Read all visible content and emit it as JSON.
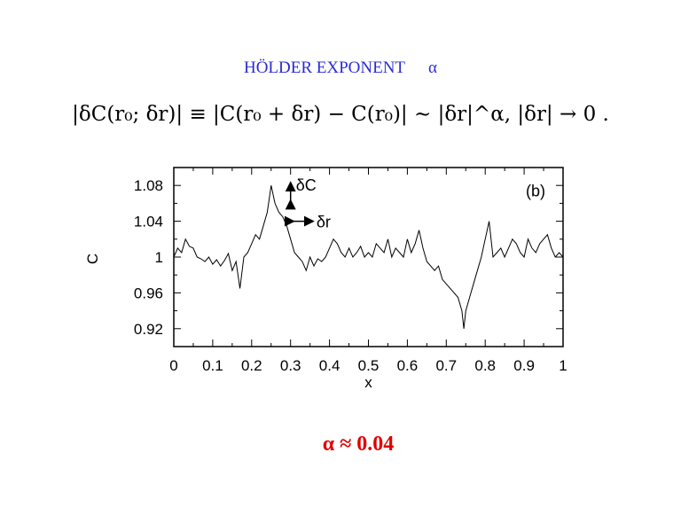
{
  "slide": {
    "title": "HÖLDER EXPONENT",
    "title_symbol": "α",
    "formula": "|δC(r₀; δr)| ≡ |C(r₀ + δr) − C(r₀)| ∼ |δr|^α,   |δr| → 0 .",
    "result": "α ≈ 0.04"
  },
  "colors": {
    "title": "#2b2bd6",
    "result": "#e00000",
    "plot_line": "#000000"
  },
  "chart_data": {
    "type": "line",
    "xlabel": "x",
    "ylabel": "C",
    "panel_label": "(b)",
    "xlim": [
      0,
      1
    ],
    "ylim": [
      0.9,
      1.1
    ],
    "x_ticks": [
      0,
      0.1,
      0.2,
      0.3,
      0.4,
      0.5,
      0.6,
      0.7,
      0.8,
      0.9,
      1
    ],
    "x_tick_labels": [
      "0",
      "0.1",
      "0.2",
      "0.3",
      "0.4",
      "0.5",
      "0.6",
      "0.7",
      "0.8",
      "0.9",
      "1"
    ],
    "y_ticks": [
      0.92,
      0.96,
      1.0,
      1.04,
      1.08
    ],
    "y_tick_labels": [
      "0.92",
      "0.96",
      "1",
      "1.04",
      "1.08"
    ],
    "grid": false,
    "annotations": [
      {
        "text": "δC",
        "x": 0.3,
        "y": 1.075,
        "kind": "vertical-arrow",
        "y_from": 1.062,
        "y_to": 1.082
      },
      {
        "text": "δr",
        "x": 0.305,
        "y": 1.04,
        "kind": "horizontal-arrow",
        "x_from": 0.305,
        "x_to": 0.355
      }
    ],
    "series": [
      {
        "x": [
          0.0,
          0.01,
          0.02,
          0.03,
          0.04,
          0.05,
          0.06,
          0.07,
          0.08,
          0.09,
          0.1,
          0.11,
          0.12,
          0.13,
          0.14,
          0.15,
          0.16,
          0.17,
          0.18,
          0.19,
          0.2,
          0.21,
          0.22,
          0.23,
          0.24,
          0.245,
          0.25,
          0.26,
          0.27,
          0.28,
          0.29,
          0.3,
          0.31,
          0.32,
          0.33,
          0.34,
          0.35,
          0.36,
          0.37,
          0.38,
          0.39,
          0.4,
          0.41,
          0.42,
          0.43,
          0.44,
          0.45,
          0.46,
          0.47,
          0.48,
          0.49,
          0.5,
          0.51,
          0.52,
          0.53,
          0.54,
          0.55,
          0.56,
          0.57,
          0.58,
          0.59,
          0.6,
          0.61,
          0.62,
          0.63,
          0.64,
          0.65,
          0.66,
          0.67,
          0.68,
          0.69,
          0.7,
          0.71,
          0.72,
          0.73,
          0.74,
          0.745,
          0.75,
          0.76,
          0.77,
          0.78,
          0.79,
          0.8,
          0.81,
          0.82,
          0.83,
          0.84,
          0.85,
          0.86,
          0.87,
          0.88,
          0.89,
          0.9,
          0.91,
          0.92,
          0.93,
          0.94,
          0.95,
          0.96,
          0.97,
          0.98,
          0.99,
          1.0
        ],
        "y": [
          1.0,
          1.01,
          1.005,
          1.02,
          1.012,
          1.01,
          1.0,
          0.998,
          0.995,
          1.0,
          0.992,
          0.997,
          0.99,
          0.996,
          1.004,
          0.985,
          0.995,
          0.965,
          1.0,
          1.005,
          1.015,
          1.025,
          1.02,
          1.035,
          1.05,
          1.065,
          1.08,
          1.06,
          1.05,
          1.045,
          1.035,
          1.02,
          1.005,
          1.0,
          0.995,
          0.985,
          1.0,
          0.99,
          0.998,
          0.995,
          1.0,
          1.01,
          1.02,
          1.015,
          1.005,
          1.0,
          1.01,
          1.0,
          1.005,
          1.012,
          1.0,
          1.005,
          1.0,
          1.015,
          1.01,
          1.005,
          1.02,
          1.0,
          1.01,
          1.005,
          1.0,
          1.02,
          1.005,
          1.015,
          1.03,
          1.01,
          0.995,
          0.99,
          0.985,
          0.99,
          0.975,
          0.97,
          0.965,
          0.96,
          0.955,
          0.94,
          0.92,
          0.94,
          0.955,
          0.97,
          0.985,
          1.0,
          1.02,
          1.04,
          1.0,
          1.005,
          1.01,
          1.0,
          1.01,
          1.02,
          1.015,
          1.005,
          1.0,
          1.02,
          1.01,
          1.005,
          1.015,
          1.02,
          1.025,
          1.01,
          1.0,
          1.005,
          1.0
        ]
      }
    ]
  }
}
